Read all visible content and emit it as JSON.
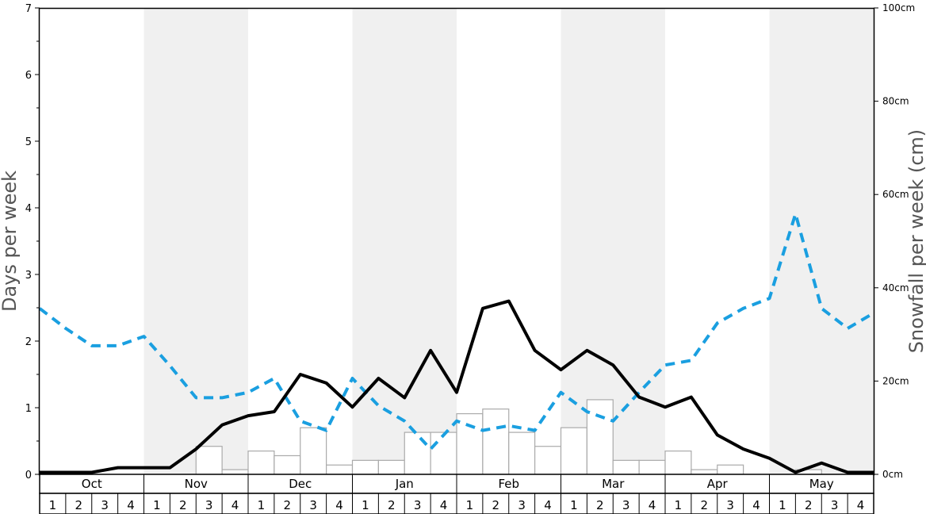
{
  "chart_data": {
    "type": "bar+line",
    "title": "",
    "ylabel_left": "Days per week",
    "ylabel_right": "Snowfall per week (cm)",
    "ylim_left": [
      0,
      7
    ],
    "ylim_right": [
      0,
      100
    ],
    "left_ticks": [
      "0",
      "1",
      "2",
      "3",
      "4",
      "5",
      "6",
      "7"
    ],
    "right_ticks": [
      "0cm",
      "20cm",
      "40cm",
      "60cm",
      "80cm",
      "100cm"
    ],
    "months": [
      "Oct",
      "Nov",
      "Dec",
      "Jan",
      "Feb",
      "Mar",
      "Apr",
      "May"
    ],
    "weeks": [
      "1",
      "2",
      "3",
      "4"
    ],
    "shaded_months": [
      "Nov",
      "Jan",
      "Mar",
      "May"
    ],
    "grid": false,
    "colors": {
      "snow_days_line": "#000000",
      "snowfall_line": "#1a9fe0",
      "bar_fill": "#ffffff",
      "bar_stroke": "#aaaaaa",
      "band": "#f0f0f0"
    },
    "snowfall_bars_cm": [
      0,
      0,
      0,
      0,
      0,
      0,
      6,
      1,
      5,
      4,
      10,
      2,
      3,
      3,
      9,
      9,
      13,
      14,
      9,
      6,
      10,
      16,
      3,
      3,
      5,
      1,
      2,
      0,
      0,
      1,
      0,
      0
    ],
    "series": [
      {
        "style": "solid-black",
        "axis": "left",
        "values": [
          0.03,
          0.03,
          0.03,
          0.1,
          0.1,
          0.1,
          0.38,
          0.74,
          0.88,
          0.94,
          1.5,
          1.37,
          1.01,
          1.44,
          1.15,
          1.86,
          1.23,
          2.49,
          2.6,
          1.86,
          1.57,
          1.86,
          1.64,
          1.16,
          1.01,
          1.16,
          0.59,
          0.38,
          0.24,
          0.03,
          0.17,
          0.03,
          0.03
        ]
      },
      {
        "style": "dashed-blue",
        "axis": "left",
        "values": [
          2.49,
          2.19,
          1.93,
          1.93,
          2.07,
          1.63,
          1.15,
          1.15,
          1.23,
          1.44,
          0.8,
          0.66,
          1.44,
          1.03,
          0.8,
          0.38,
          0.8,
          0.66,
          0.73,
          0.66,
          1.23,
          0.94,
          0.8,
          1.23,
          1.64,
          1.71,
          2.27,
          2.49,
          2.64,
          3.91,
          2.49,
          2.19,
          2.42
        ]
      }
    ]
  }
}
